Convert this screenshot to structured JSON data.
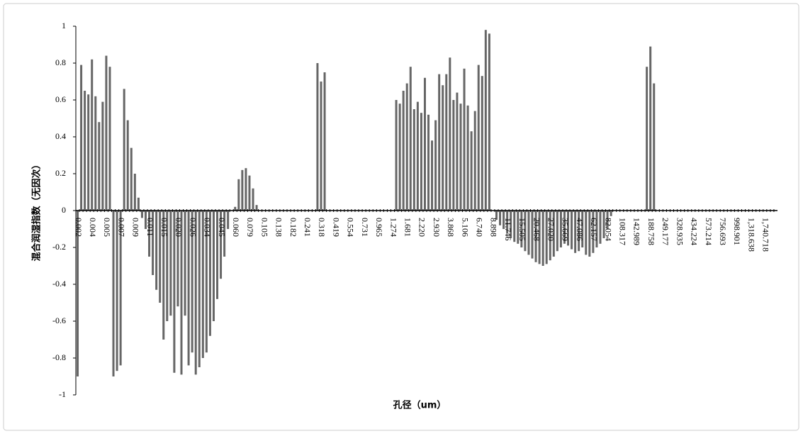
{
  "chart_data": {
    "type": "bar",
    "y_label": "混合润湿指数（无因次）",
    "x_label": "孔径（um）",
    "color": "#666666",
    "ylim": [
      -1,
      1
    ],
    "yticks": [
      1,
      0.8,
      0.6,
      0.4,
      0.2,
      0,
      -0.2,
      -0.4,
      -0.6,
      -0.8,
      -1
    ],
    "categories": [
      "0.002",
      null,
      null,
      null,
      "0.004",
      null,
      null,
      null,
      "0.005",
      null,
      null,
      null,
      "0.007",
      null,
      null,
      null,
      "0.009",
      null,
      null,
      null,
      "0.011",
      null,
      null,
      null,
      "0.015",
      null,
      null,
      null,
      "0.020",
      null,
      null,
      null,
      "0.026",
      null,
      null,
      null,
      "0.034",
      null,
      null,
      null,
      "0.045",
      null,
      null,
      null,
      "0.060",
      null,
      null,
      null,
      "0.079",
      null,
      null,
      null,
      "0.105",
      null,
      null,
      null,
      "0.138",
      null,
      null,
      null,
      "0.182",
      null,
      null,
      null,
      "0.241",
      null,
      null,
      null,
      "0.318",
      null,
      null,
      null,
      "0.419",
      null,
      null,
      null,
      "0.554",
      null,
      null,
      null,
      "0.731",
      null,
      null,
      null,
      "0.965",
      null,
      null,
      null,
      "1.274",
      null,
      null,
      null,
      "1.681",
      null,
      null,
      null,
      "2.220",
      null,
      null,
      null,
      "2.930",
      null,
      null,
      null,
      "3.868",
      null,
      null,
      null,
      "5.106",
      null,
      null,
      null,
      "6.740",
      null,
      null,
      null,
      "8.898",
      null,
      null,
      null,
      "11.746",
      null,
      null,
      null,
      "15.505",
      null,
      null,
      null,
      "20.468",
      null,
      null,
      null,
      "27.020",
      null,
      null,
      null,
      "35.669",
      null,
      null,
      null,
      "47.086",
      null,
      null,
      null,
      "62.157",
      null,
      null,
      null,
      "82.054",
      null,
      null,
      null,
      "108.317",
      null,
      null,
      null,
      "142.989",
      null,
      null,
      null,
      "188.758",
      null,
      null,
      null,
      "249.177",
      null,
      null,
      null,
      "328.935",
      null,
      null,
      null,
      "434.224",
      null,
      null,
      null,
      "573.214",
      null,
      null,
      null,
      "756.693",
      null,
      null,
      null,
      "998.901",
      null,
      null,
      null,
      "1,318.638",
      null,
      null,
      null,
      "1,740.718",
      null,
      null,
      null
    ],
    "values": [
      -0.9,
      0.79,
      0.65,
      0.63,
      0.82,
      0.62,
      0.48,
      0.59,
      0.84,
      0.78,
      -0.9,
      -0.87,
      -0.84,
      0.66,
      0.49,
      0.34,
      0.2,
      0.07,
      -0.04,
      -0.1,
      -0.25,
      -0.35,
      -0.43,
      -0.5,
      -0.7,
      -0.6,
      -0.57,
      -0.88,
      -0.52,
      -0.89,
      -0.57,
      -0.84,
      -0.77,
      -0.89,
      -0.85,
      -0.8,
      -0.77,
      -0.68,
      -0.6,
      -0.48,
      -0.37,
      -0.25,
      -0.1,
      0,
      0.02,
      0.17,
      0.22,
      0.23,
      0.19,
      0.12,
      0.03,
      0,
      0,
      0,
      0,
      0,
      0,
      0,
      0,
      0,
      0,
      0,
      0,
      0,
      0,
      0,
      0,
      0.8,
      0.7,
      0.75,
      0,
      0,
      0,
      0,
      0,
      0,
      0,
      0,
      0,
      0,
      0,
      0,
      0,
      0,
      0,
      0,
      0,
      0,
      0,
      0.6,
      0.58,
      0.65,
      0.69,
      0.78,
      0.55,
      0.59,
      0.53,
      0.72,
      0.52,
      0.38,
      0.49,
      0.74,
      0.68,
      0.74,
      0.83,
      0.6,
      0.64,
      0.58,
      0.77,
      0.57,
      0.43,
      0.54,
      0.79,
      0.73,
      0.98,
      0.96,
      0,
      -0.05,
      -0.08,
      -0.1,
      -0.12,
      -0.15,
      -0.17,
      -0.18,
      -0.2,
      -0.22,
      -0.24,
      -0.26,
      -0.28,
      -0.29,
      -0.3,
      -0.29,
      -0.27,
      -0.25,
      -0.22,
      -0.2,
      -0.18,
      -0.19,
      -0.21,
      -0.23,
      -0.22,
      -0.2,
      -0.24,
      -0.25,
      -0.23,
      -0.2,
      -0.18,
      -0.15,
      -0.1,
      -0.03,
      0,
      0,
      0,
      0,
      0,
      0,
      0,
      0,
      0,
      0.78,
      0.89,
      0.69,
      0,
      0,
      0,
      0,
      0,
      0,
      0,
      0,
      0,
      0,
      0,
      0,
      0,
      0,
      0,
      0,
      0,
      0,
      0,
      0,
      0,
      0,
      0,
      0,
      0,
      0,
      0,
      0,
      0,
      0,
      0,
      0,
      0,
      0
    ]
  }
}
